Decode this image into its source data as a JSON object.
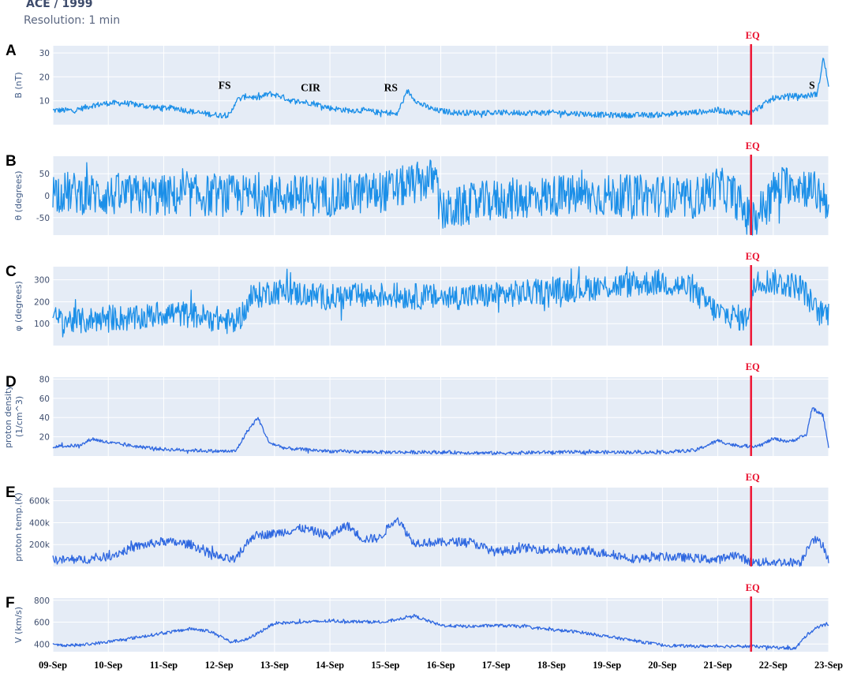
{
  "header": {
    "title": "ACE / 1999",
    "subtitle": "Resolution: 1 min"
  },
  "chart_data": {
    "type": "line",
    "x_tick_labels": [
      "09-Sep",
      "10-Sep",
      "11-Sep",
      "12-Sep",
      "13-Sep",
      "14-Sep",
      "15-Sep",
      "16-Sep",
      "17-Sep",
      "18-Sep",
      "19-Sep",
      "20-Sep",
      "21-Sep",
      "22-Sep",
      "23-Sep"
    ],
    "xlim": [
      0,
      14
    ],
    "marker": {
      "label": "EQ",
      "x": 12.6,
      "color": "#ee1c3a"
    },
    "panels": [
      {
        "letter": "A",
        "ylabel": "B (nT)",
        "ylim": [
          0,
          33
        ],
        "yticks": [
          10,
          20,
          30
        ],
        "ytick_labels": [
          "10",
          "20",
          "30"
        ],
        "color": "#1b8fe8",
        "noise": 1.2,
        "annotations": [
          {
            "text": "FS",
            "x": 3.1,
            "y": 15
          },
          {
            "text": "CIR",
            "x": 4.65,
            "y": 14
          },
          {
            "text": "RS",
            "x": 6.1,
            "y": 14
          },
          {
            "text": "S",
            "x": 13.7,
            "y": 15
          }
        ],
        "x": [
          0,
          0.4,
          0.7,
          1.0,
          1.3,
          1.6,
          1.9,
          2.2,
          2.6,
          3.0,
          3.2,
          3.3,
          3.5,
          3.7,
          3.9,
          4.1,
          4.3,
          4.7,
          5.0,
          5.3,
          5.6,
          5.9,
          6.1,
          6.2,
          6.4,
          6.6,
          6.9,
          7.3,
          7.8,
          8.5,
          9.2,
          10.0,
          10.8,
          11.5,
          12.0,
          12.3,
          12.6,
          12.8,
          13.0,
          13.3,
          13.6,
          13.8,
          13.9,
          14.0
        ],
        "y": [
          6,
          6,
          8,
          9,
          9,
          8,
          7,
          7,
          5,
          4,
          4,
          10,
          12,
          11,
          13,
          12,
          10,
          9,
          7,
          6,
          6,
          5,
          5,
          4,
          14,
          9,
          6,
          5,
          5,
          5,
          5,
          4,
          4,
          5,
          6,
          5,
          5,
          8,
          11,
          12,
          12,
          13,
          28,
          17
        ]
      },
      {
        "letter": "B",
        "ylabel": "θ (degrees)",
        "ylim": [
          -90,
          90
        ],
        "yticks": [
          -50,
          0,
          50
        ],
        "ytick_labels": [
          "-50",
          "0",
          "50"
        ],
        "color": "#1b8fe8",
        "noise": 48,
        "annotations": [],
        "x": [
          0,
          1,
          2,
          3,
          4,
          5,
          6,
          6.9,
          7.0,
          7.5,
          8,
          9,
          10,
          11,
          11.5,
          12.0,
          12.3,
          12.6,
          12.8,
          13.0,
          13.3,
          13.6,
          14.0
        ],
        "y": [
          10,
          0,
          0,
          0,
          0,
          0,
          10,
          40,
          -40,
          -20,
          -10,
          0,
          0,
          0,
          -10,
          20,
          0,
          -60,
          -30,
          10,
          30,
          20,
          -10
        ]
      },
      {
        "letter": "C",
        "ylabel": "φ (degrees)",
        "ylim": [
          0,
          360
        ],
        "yticks": [
          100,
          200,
          300
        ],
        "ytick_labels": [
          "100",
          "200",
          "300"
        ],
        "color": "#1b8fe8",
        "noise": 60,
        "annotations": [],
        "x": [
          0,
          0.5,
          1.0,
          1.5,
          2.0,
          2.5,
          3.0,
          3.3,
          3.6,
          4.0,
          5,
          6,
          7,
          8,
          9,
          10,
          11,
          11.5,
          12.0,
          12.5,
          12.7,
          13.0,
          13.5,
          13.8,
          14.0
        ],
        "y": [
          120,
          110,
          130,
          120,
          150,
          140,
          120,
          100,
          220,
          250,
          220,
          230,
          220,
          230,
          250,
          270,
          290,
          260,
          150,
          120,
          300,
          290,
          270,
          150,
          150
        ]
      },
      {
        "letter": "D",
        "ylabel": "proton density",
        "ylabel2": "(1/cm^3)",
        "ylim": [
          0,
          82
        ],
        "yticks": [
          20,
          40,
          60,
          80
        ],
        "ytick_labels": [
          "20",
          "40",
          "60",
          "80"
        ],
        "color": "#2e67e0",
        "noise": 1.8,
        "annotations": [],
        "x": [
          0,
          0.5,
          0.7,
          1.0,
          1.5,
          2.0,
          2.5,
          3.0,
          3.3,
          3.5,
          3.7,
          3.9,
          4.2,
          5,
          6,
          7,
          8,
          9,
          10,
          11,
          11.6,
          12.0,
          12.3,
          12.6,
          12.8,
          13.0,
          13.3,
          13.6,
          13.7,
          13.9,
          14.0
        ],
        "y": [
          10,
          11,
          18,
          14,
          10,
          7,
          6,
          5,
          5,
          25,
          40,
          14,
          8,
          5,
          4,
          4,
          3,
          4,
          4,
          4,
          6,
          16,
          11,
          10,
          12,
          18,
          15,
          22,
          50,
          42,
          10
        ]
      },
      {
        "letter": "E",
        "ylabel": "proton temp.(K)",
        "ylim": [
          0,
          720000
        ],
        "yticks": [
          200000,
          400000,
          600000
        ],
        "ytick_labels": [
          "200k",
          "400k",
          "600k"
        ],
        "color": "#2e67e0",
        "noise": 40000,
        "annotations": [],
        "x": [
          0,
          0.5,
          1.0,
          1.5,
          2.0,
          2.5,
          3.0,
          3.3,
          3.6,
          4.0,
          4.5,
          5.0,
          5.3,
          5.6,
          5.9,
          6.2,
          6.5,
          7.0,
          7.5,
          8,
          8.5,
          9,
          9.5,
          10,
          10.5,
          11,
          11.5,
          12.0,
          12.3,
          12.6,
          13.0,
          13.5,
          13.7,
          13.9,
          14.0
        ],
        "y": [
          60000,
          60000,
          90000,
          180000,
          230000,
          200000,
          80000,
          60000,
          280000,
          300000,
          350000,
          280000,
          380000,
          250000,
          260000,
          450000,
          220000,
          220000,
          230000,
          130000,
          170000,
          150000,
          140000,
          120000,
          70000,
          90000,
          80000,
          60000,
          110000,
          40000,
          40000,
          40000,
          260000,
          200000,
          50000
        ]
      },
      {
        "letter": "F",
        "ylabel": "V (km/s)",
        "ylim": [
          330,
          820
        ],
        "yticks": [
          400,
          600,
          800
        ],
        "ytick_labels": [
          "400",
          "600",
          "800"
        ],
        "color": "#2e67e0",
        "noise": 14,
        "annotations": [],
        "x": [
          0,
          0.5,
          1.0,
          1.5,
          2.0,
          2.5,
          2.8,
          3.0,
          3.2,
          3.5,
          4,
          5,
          6,
          6.5,
          7,
          7.5,
          8,
          8.5,
          9,
          9.5,
          10,
          10.5,
          11,
          11.5,
          12.0,
          12.5,
          13.0,
          13.4,
          13.6,
          13.8,
          14.0
        ],
        "y": [
          390,
          390,
          420,
          460,
          500,
          540,
          520,
          480,
          420,
          440,
          590,
          610,
          600,
          660,
          570,
          560,
          570,
          560,
          530,
          510,
          470,
          430,
          390,
          380,
          380,
          380,
          370,
          360,
          480,
          560,
          580
        ]
      }
    ]
  }
}
